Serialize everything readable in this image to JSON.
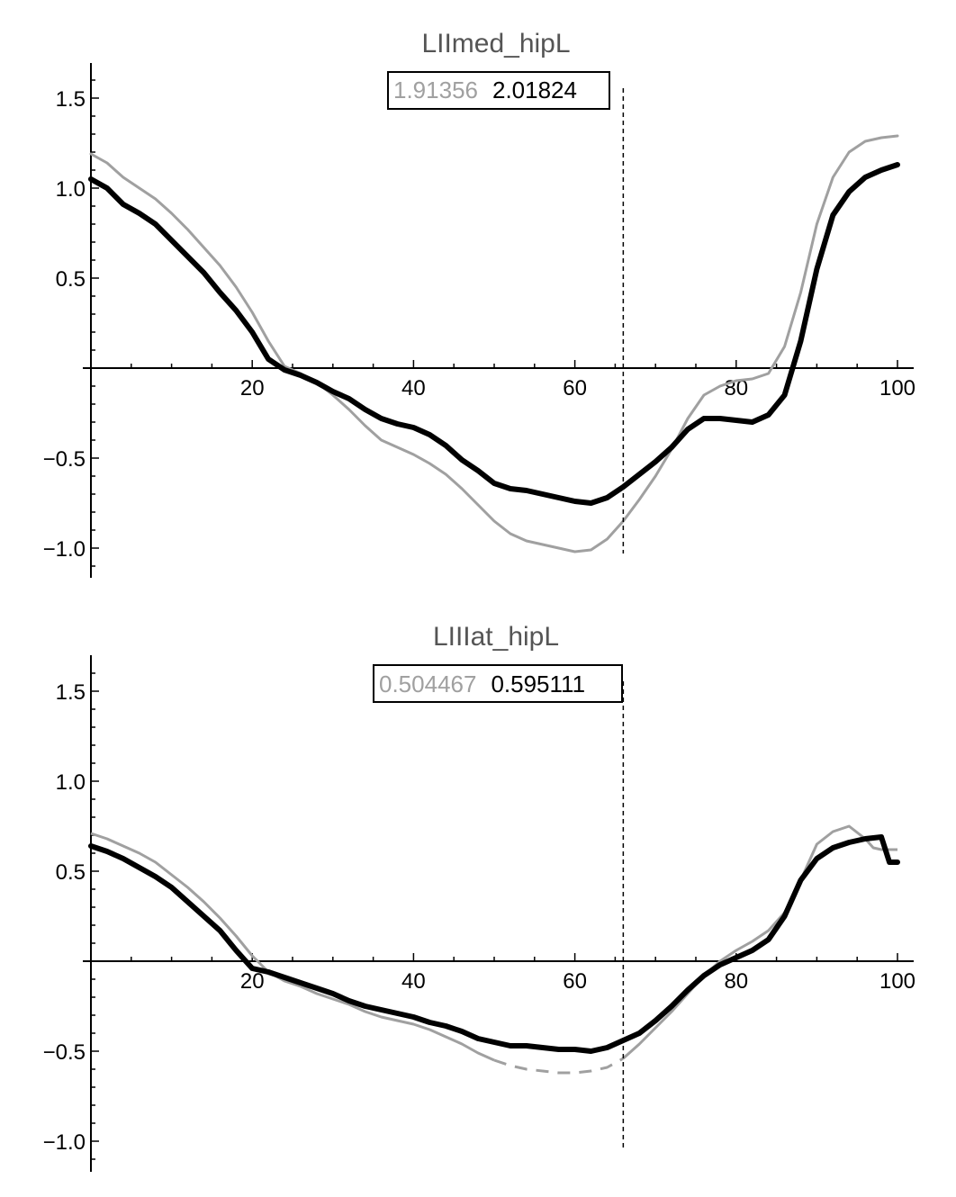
{
  "chart_data": [
    {
      "type": "line",
      "title": "LIImed_hipL",
      "xlabel": "",
      "ylabel": "",
      "xlim": [
        0,
        100
      ],
      "ylim": [
        -1.15,
        1.7
      ],
      "xticks": [
        20,
        40,
        60,
        80,
        100
      ],
      "xtick_labels": [
        "20",
        "40",
        "60",
        "80",
        "100"
      ],
      "yticks": [
        -1.0,
        -0.5,
        0.5,
        1.0,
        1.5
      ],
      "ytick_labels": [
        "−1.0",
        "−0.5",
        "0.5",
        "1.0",
        "1.5"
      ],
      "marker_x": 66,
      "legend": {
        "values": [
          "1.91356",
          "2.01824"
        ],
        "colors": [
          "#a0a0a0",
          "#000000"
        ]
      },
      "series": [
        {
          "color": "#a0a0a0",
          "width": 3,
          "x": [
            0,
            2,
            4,
            6,
            8,
            10,
            12,
            14,
            16,
            18,
            20,
            22,
            24,
            26,
            28,
            30,
            32,
            34,
            36,
            38,
            40,
            42,
            44,
            46,
            48,
            50,
            52,
            54,
            56,
            58,
            60,
            62,
            64,
            66,
            68,
            70,
            72,
            74,
            76,
            78,
            80,
            82,
            84,
            86,
            88,
            90,
            92,
            94,
            96,
            98,
            100
          ],
          "y": [
            1.19,
            1.14,
            1.06,
            1.0,
            0.94,
            0.86,
            0.77,
            0.67,
            0.57,
            0.45,
            0.31,
            0.15,
            0.01,
            -0.03,
            -0.08,
            -0.15,
            -0.23,
            -0.32,
            -0.4,
            -0.44,
            -0.48,
            -0.53,
            -0.59,
            -0.67,
            -0.76,
            -0.85,
            -0.92,
            -0.96,
            -0.98,
            -1.0,
            -1.02,
            -1.01,
            -0.95,
            -0.85,
            -0.73,
            -0.6,
            -0.45,
            -0.28,
            -0.15,
            -0.1,
            -0.07,
            -0.06,
            -0.03,
            0.12,
            0.42,
            0.8,
            1.06,
            1.2,
            1.26,
            1.28,
            1.29
          ]
        },
        {
          "color": "#000000",
          "width": 6,
          "x": [
            0,
            2,
            4,
            6,
            8,
            10,
            12,
            14,
            16,
            18,
            20,
            22,
            24,
            26,
            28,
            30,
            32,
            34,
            36,
            38,
            40,
            42,
            44,
            46,
            48,
            50,
            52,
            54,
            56,
            58,
            60,
            62,
            64,
            66,
            68,
            70,
            72,
            74,
            76,
            78,
            80,
            82,
            84,
            86,
            88,
            90,
            92,
            94,
            96,
            98,
            100
          ],
          "y": [
            1.05,
            1.0,
            0.91,
            0.86,
            0.8,
            0.71,
            0.62,
            0.53,
            0.42,
            0.32,
            0.2,
            0.05,
            -0.01,
            -0.04,
            -0.08,
            -0.13,
            -0.17,
            -0.23,
            -0.28,
            -0.31,
            -0.33,
            -0.37,
            -0.43,
            -0.51,
            -0.57,
            -0.64,
            -0.67,
            -0.68,
            -0.7,
            -0.72,
            -0.74,
            -0.75,
            -0.72,
            -0.66,
            -0.59,
            -0.52,
            -0.44,
            -0.34,
            -0.28,
            -0.28,
            -0.29,
            -0.3,
            -0.26,
            -0.15,
            0.15,
            0.55,
            0.85,
            0.98,
            1.06,
            1.1,
            1.13
          ]
        }
      ]
    },
    {
      "type": "line",
      "title": "LIIIat_hipL",
      "xlabel": "",
      "ylabel": "",
      "xlim": [
        0,
        100
      ],
      "ylim": [
        -1.15,
        1.7
      ],
      "xticks": [
        20,
        40,
        60,
        80,
        100
      ],
      "xtick_labels": [
        "20",
        "40",
        "60",
        "80",
        "100"
      ],
      "yticks": [
        -1.0,
        -0.5,
        0.5,
        1.0,
        1.5
      ],
      "ytick_labels": [
        "−1.0",
        "−0.5",
        "0.5",
        "1.0",
        "1.5"
      ],
      "marker_x": 66,
      "legend": {
        "values": [
          "0.504467",
          "0.595111"
        ],
        "colors": [
          "#a0a0a0",
          "#000000"
        ]
      },
      "series": [
        {
          "color": "#a0a0a0",
          "width": 3,
          "dashed_range": [
            50,
            66
          ],
          "x": [
            0,
            2,
            4,
            6,
            8,
            10,
            12,
            14,
            16,
            18,
            20,
            22,
            24,
            26,
            28,
            30,
            32,
            34,
            36,
            38,
            40,
            42,
            44,
            46,
            48,
            50,
            52,
            54,
            56,
            58,
            60,
            62,
            64,
            66,
            68,
            70,
            72,
            74,
            76,
            78,
            80,
            82,
            84,
            86,
            88,
            90,
            92,
            94,
            96,
            97,
            98,
            100
          ],
          "y": [
            0.71,
            0.68,
            0.64,
            0.6,
            0.55,
            0.48,
            0.41,
            0.33,
            0.24,
            0.14,
            0.03,
            -0.06,
            -0.11,
            -0.14,
            -0.18,
            -0.21,
            -0.24,
            -0.28,
            -0.31,
            -0.33,
            -0.35,
            -0.38,
            -0.42,
            -0.46,
            -0.51,
            -0.55,
            -0.58,
            -0.6,
            -0.61,
            -0.62,
            -0.62,
            -0.61,
            -0.59,
            -0.54,
            -0.46,
            -0.37,
            -0.28,
            -0.18,
            -0.08,
            0.0,
            0.06,
            0.11,
            0.17,
            0.27,
            0.45,
            0.65,
            0.72,
            0.75,
            0.68,
            0.63,
            0.62,
            0.62
          ]
        },
        {
          "color": "#000000",
          "width": 6,
          "x": [
            0,
            2,
            4,
            6,
            8,
            10,
            12,
            14,
            16,
            18,
            20,
            22,
            24,
            26,
            28,
            30,
            32,
            34,
            36,
            38,
            40,
            42,
            44,
            46,
            48,
            50,
            52,
            54,
            56,
            58,
            60,
            62,
            64,
            66,
            68,
            70,
            72,
            74,
            76,
            78,
            80,
            82,
            84,
            86,
            88,
            90,
            92,
            94,
            96,
            98,
            99,
            100
          ],
          "y": [
            0.64,
            0.61,
            0.57,
            0.52,
            0.47,
            0.41,
            0.33,
            0.25,
            0.17,
            0.06,
            -0.04,
            -0.06,
            -0.09,
            -0.12,
            -0.15,
            -0.18,
            -0.22,
            -0.25,
            -0.27,
            -0.29,
            -0.31,
            -0.34,
            -0.36,
            -0.39,
            -0.43,
            -0.45,
            -0.47,
            -0.47,
            -0.48,
            -0.49,
            -0.49,
            -0.5,
            -0.48,
            -0.44,
            -0.4,
            -0.33,
            -0.25,
            -0.16,
            -0.08,
            -0.02,
            0.02,
            0.06,
            0.12,
            0.25,
            0.45,
            0.57,
            0.63,
            0.66,
            0.68,
            0.69,
            0.55,
            0.55
          ]
        }
      ]
    }
  ]
}
